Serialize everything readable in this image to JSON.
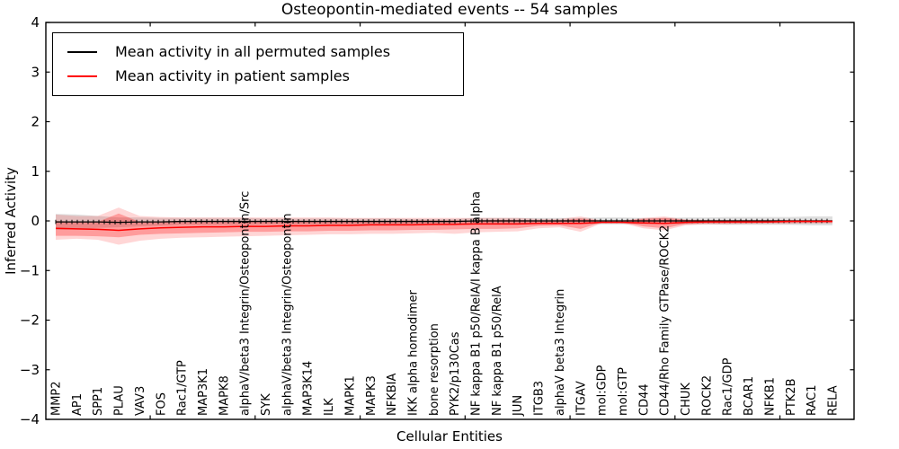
{
  "legend": {
    "position": "upper left",
    "items": [
      {
        "label": "Mean activity in all permuted samples",
        "color": "#000000"
      },
      {
        "label": "Mean activity in patient samples",
        "color": "#ff0000"
      }
    ]
  },
  "chart_data": {
    "type": "line",
    "title": "Osteopontin-mediated events -- 54 samples",
    "xlabel": "Cellular Entities",
    "ylabel": "Inferred Activity",
    "ylim": [
      -4,
      4
    ],
    "yticks": [
      4,
      3,
      2,
      1,
      0,
      -1,
      -2,
      -3,
      -4
    ],
    "grid": false,
    "legend_position": "upper left",
    "categories": [
      "MMP2",
      "AP1",
      "SPP1",
      "PLAU",
      "VAV3",
      "FOS",
      "Rac1/GTP",
      "MAP3K1",
      "MAPK8",
      "alphaV/beta3 Integrin/Osteopontin/Src",
      "SYK",
      "alphaV/beta3 Integrin/Osteopontin",
      "MAP3K14",
      "ILK",
      "MAPK1",
      "MAPK3",
      "NFKBIA",
      "IKK alpha homodimer",
      "bone resorption",
      "PYK2/p130Cas",
      "NF kappa B1 p50/RelA/I kappa B alpha",
      "NF kappa B1 p50/RelA",
      "JUN",
      "ITGB3",
      "alphaV beta3 Integrin",
      "ITGAV",
      "mol:GDP",
      "mol:GTP",
      "CD44",
      "CD44/Rho Family GTPase/ROCK2",
      "CHUK",
      "ROCK2",
      "Rac1/GDP",
      "BCAR1",
      "NFKB1",
      "PTK2B",
      "RAC1",
      "RELA"
    ],
    "series": [
      {
        "name": "Mean activity in all permuted samples",
        "color": "#000000",
        "values": [
          -0.02,
          -0.02,
          -0.02,
          -0.03,
          -0.02,
          -0.02,
          -0.01,
          -0.01,
          -0.01,
          -0.01,
          -0.01,
          -0.01,
          -0.01,
          -0.01,
          -0.01,
          -0.01,
          -0.01,
          -0.01,
          -0.01,
          -0.01,
          0.0,
          0.0,
          0.0,
          0.0,
          0.0,
          0.0,
          0.0,
          0.0,
          0.0,
          0.0,
          0.0,
          0.0,
          0.0,
          0.0,
          0.0,
          0.0,
          0.0,
          0.0
        ],
        "band_half_widths": [
          0.16,
          0.15,
          0.12,
          0.1,
          0.09,
          0.08,
          0.07,
          0.07,
          0.07,
          0.07,
          0.06,
          0.06,
          0.06,
          0.06,
          0.06,
          0.06,
          0.06,
          0.05,
          0.05,
          0.05,
          0.06,
          0.06,
          0.06,
          0.06,
          0.06,
          0.06,
          0.07,
          0.07,
          0.06,
          0.06,
          0.07,
          0.07,
          0.08,
          0.08,
          0.08,
          0.08,
          0.09,
          0.09
        ],
        "band_fill": "#000000",
        "band_opacity": 0.13
      },
      {
        "name": "Mean activity in patient samples",
        "color": "#ff0000",
        "values": [
          -0.15,
          -0.16,
          -0.17,
          -0.19,
          -0.16,
          -0.14,
          -0.13,
          -0.12,
          -0.12,
          -0.11,
          -0.11,
          -0.1,
          -0.1,
          -0.09,
          -0.09,
          -0.08,
          -0.08,
          -0.08,
          -0.07,
          -0.07,
          -0.06,
          -0.06,
          -0.06,
          -0.05,
          -0.05,
          -0.05,
          -0.03,
          -0.03,
          -0.04,
          -0.05,
          -0.03,
          -0.02,
          -0.02,
          -0.02,
          -0.02,
          -0.01,
          -0.01,
          -0.01
        ],
        "inner_band_lo": [
          -0.3,
          -0.3,
          -0.31,
          -0.33,
          -0.28,
          -0.26,
          -0.25,
          -0.24,
          -0.23,
          -0.22,
          -0.22,
          -0.21,
          -0.21,
          -0.2,
          -0.2,
          -0.19,
          -0.19,
          -0.18,
          -0.18,
          -0.17,
          -0.16,
          -0.16,
          -0.15,
          -0.1,
          -0.09,
          -0.16,
          -0.03,
          -0.03,
          -0.11,
          -0.15,
          -0.06,
          -0.05,
          -0.05,
          -0.05,
          -0.04,
          -0.04,
          -0.04,
          -0.04
        ],
        "inner_band_hi": [
          0.0,
          -0.02,
          -0.02,
          0.15,
          -0.02,
          -0.02,
          -0.02,
          -0.01,
          -0.01,
          -0.01,
          -0.01,
          -0.01,
          0.0,
          0.0,
          0.0,
          0.0,
          0.0,
          0.01,
          0.01,
          0.01,
          0.01,
          0.02,
          0.02,
          0.01,
          0.01,
          0.05,
          0.0,
          0.0,
          0.04,
          0.06,
          0.02,
          0.01,
          0.01,
          0.01,
          0.01,
          0.01,
          0.01,
          0.01
        ],
        "outer_band_lo": [
          -0.38,
          -0.36,
          -0.38,
          -0.48,
          -0.4,
          -0.36,
          -0.34,
          -0.33,
          -0.32,
          -0.31,
          -0.3,
          -0.29,
          -0.28,
          -0.27,
          -0.27,
          -0.26,
          -0.26,
          -0.25,
          -0.24,
          -0.26,
          -0.23,
          -0.22,
          -0.21,
          -0.15,
          -0.13,
          -0.22,
          -0.05,
          -0.05,
          -0.15,
          -0.19,
          -0.09,
          -0.07,
          -0.07,
          -0.06,
          -0.06,
          -0.06,
          -0.05,
          -0.05
        ],
        "outer_band_hi": [
          0.13,
          0.1,
          0.1,
          0.27,
          0.1,
          0.08,
          0.07,
          0.07,
          0.07,
          0.07,
          0.07,
          0.07,
          0.07,
          0.07,
          0.06,
          0.06,
          0.06,
          0.06,
          0.06,
          0.06,
          0.06,
          0.06,
          0.06,
          0.04,
          0.04,
          0.09,
          0.01,
          0.01,
          0.06,
          0.09,
          0.03,
          0.02,
          0.02,
          0.02,
          0.02,
          0.02,
          0.02,
          0.02
        ],
        "inner_band_opacity": 0.27,
        "outer_band_opacity": 0.16
      }
    ]
  }
}
